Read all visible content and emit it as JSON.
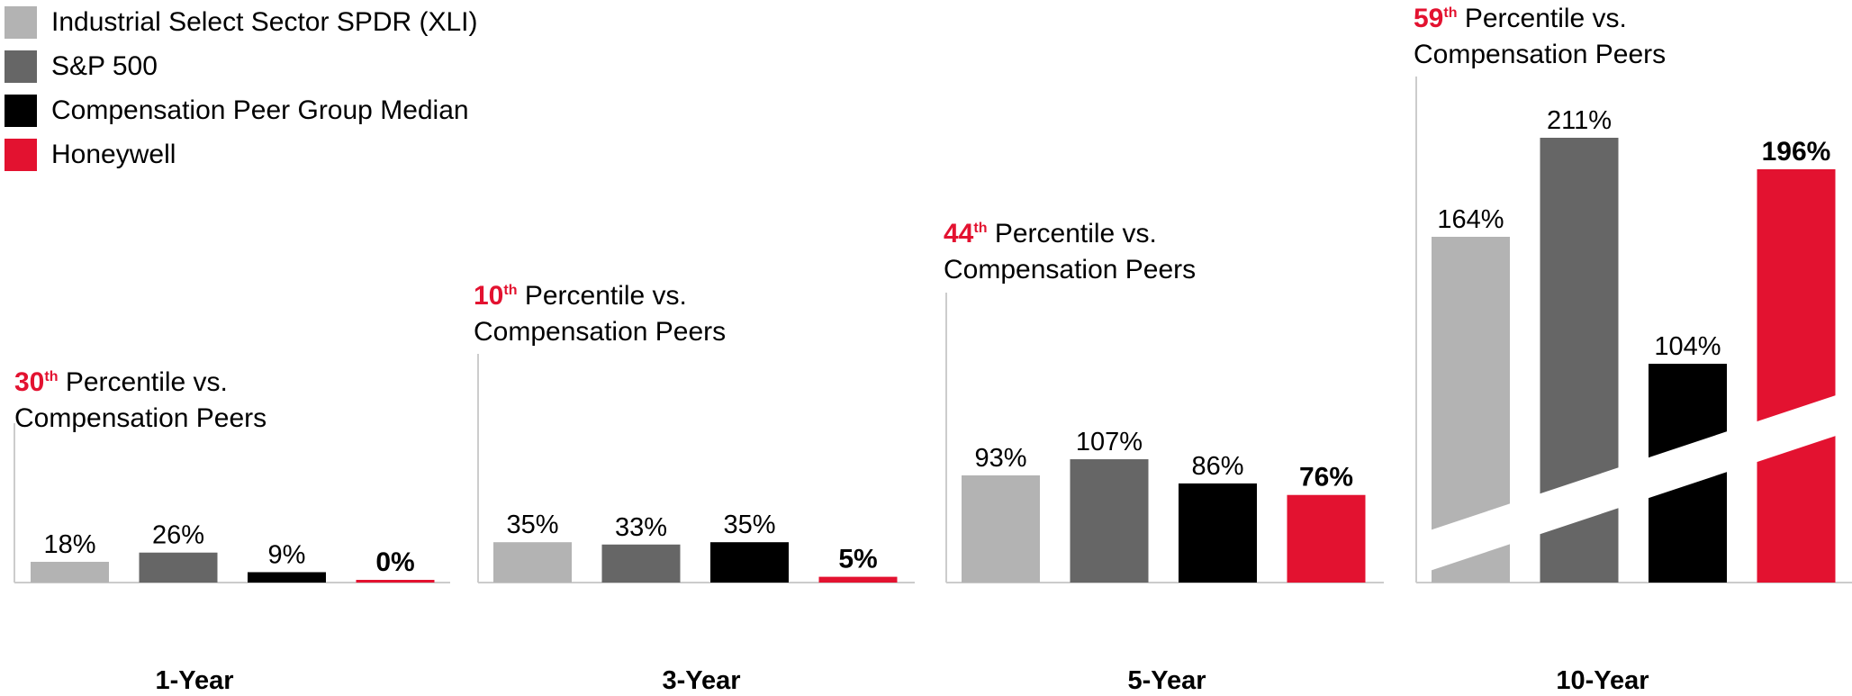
{
  "colors": {
    "xli": "#b3b3b3",
    "sp500": "#666666",
    "peer_median": "#000000",
    "honeywell": "#e31230"
  },
  "legend": [
    {
      "label": "Industrial Select Sector SPDR (XLI)",
      "color": "#b3b3b3"
    },
    {
      "label": "S&P 500",
      "color": "#666666"
    },
    {
      "label": "Compensation Peer Group Median",
      "color": "#000000"
    },
    {
      "label": "Honeywell",
      "color": "#e31230"
    }
  ],
  "annotations": [
    {
      "num": "30",
      "suffix": "th",
      "line1_rest": " Percentile vs.",
      "line2": "Compensation Peers"
    },
    {
      "num": "10",
      "suffix": "th",
      "line1_rest": " Percentile vs.",
      "line2": "Compensation Peers"
    },
    {
      "num": "44",
      "suffix": "th",
      "line1_rest": " Percentile vs.",
      "line2": "Compensation Peers"
    },
    {
      "num": "59",
      "suffix": "th",
      "line1_rest": " Percentile vs.",
      "line2": "Compensation Peers"
    }
  ],
  "chart_data": {
    "type": "bar",
    "categories": [
      "1-Year",
      "3-Year",
      "5-Year",
      "10-Year"
    ],
    "series": [
      {
        "name": "Industrial Select Sector SPDR (XLI)",
        "values": [
          18,
          35,
          93,
          164
        ],
        "labels": [
          "18%",
          "35%",
          "93%",
          "164%"
        ]
      },
      {
        "name": "S&P 500",
        "values": [
          26,
          33,
          107,
          211
        ],
        "labels": [
          "26%",
          "33%",
          "107%",
          "211%"
        ]
      },
      {
        "name": "Compensation Peer Group Median",
        "values": [
          9,
          35,
          86,
          104
        ],
        "labels": [
          "9%",
          "35%",
          "86%",
          "104%"
        ]
      },
      {
        "name": "Honeywell",
        "values": [
          0,
          5,
          76,
          196
        ],
        "labels": [
          "0%",
          "5%",
          "76%",
          "196%"
        ]
      }
    ],
    "axis_break": "10-Year panel axis is broken",
    "legend_position": "top-left"
  }
}
